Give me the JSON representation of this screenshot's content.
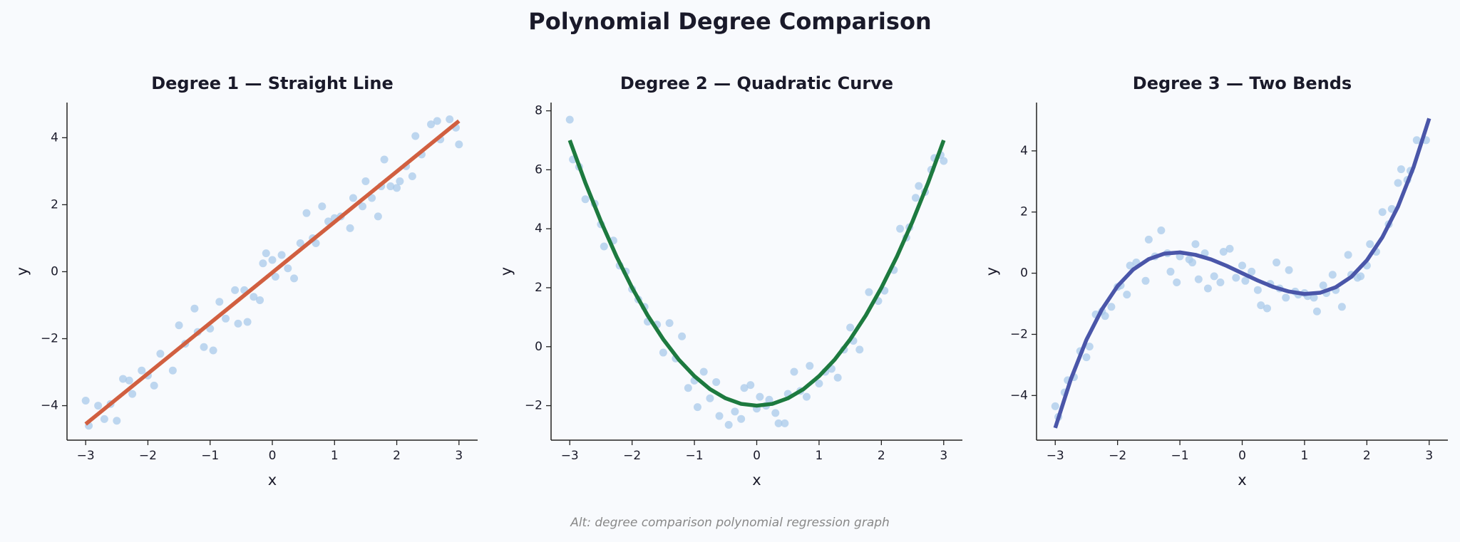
{
  "title": "Polynomial Degree Comparison",
  "footnote": "Alt: degree comparison polynomial regression graph",
  "chart_data": [
    {
      "type": "scatter",
      "title": "Degree 1 — Straight Line",
      "xlabel": "x",
      "ylabel": "y",
      "xlim": [
        -3.3,
        3.3
      ],
      "ylim": [
        -5.03,
        5.05
      ],
      "xticks": [
        {
          "value": -3,
          "label": "−3"
        },
        {
          "value": -2,
          "label": "−2"
        },
        {
          "value": -1,
          "label": "−1"
        },
        0,
        1,
        2,
        3
      ],
      "yticks": [
        {
          "value": -4,
          "label": "−4"
        },
        {
          "value": -2,
          "label": "−2"
        },
        0,
        2,
        4
      ],
      "color": "#a9c9ea",
      "x": [
        -3,
        -2.95,
        -2.8,
        -2.7,
        -2.6,
        -2.5,
        -2.4,
        -2.3,
        -2.25,
        -2.1,
        -2.0,
        -1.9,
        -1.8,
        -1.6,
        -1.5,
        -1.4,
        -1.25,
        -1.2,
        -1.1,
        -1.0,
        -0.95,
        -0.85,
        -0.75,
        -0.6,
        -0.55,
        -0.45,
        -0.4,
        -0.3,
        -0.2,
        -0.15,
        -0.1,
        0,
        0.05,
        0.15,
        0.25,
        0.35,
        0.45,
        0.55,
        0.65,
        0.7,
        0.8,
        0.9,
        1.0,
        1.1,
        1.25,
        1.3,
        1.45,
        1.5,
        1.6,
        1.7,
        1.75,
        1.8,
        1.9,
        2.0,
        2.05,
        2.15,
        2.25,
        2.3,
        2.4,
        2.55,
        2.65,
        2.7,
        2.85,
        2.95,
        3.0
      ],
      "values": [
        -3.85,
        -4.6,
        -4.0,
        -4.4,
        -3.95,
        -4.45,
        -3.2,
        -3.25,
        -3.65,
        -2.95,
        -3.1,
        -3.4,
        -2.45,
        -2.95,
        -1.6,
        -2.15,
        -1.1,
        -1.8,
        -2.25,
        -1.7,
        -2.35,
        -0.9,
        -1.4,
        -0.55,
        -1.55,
        -0.55,
        -1.5,
        -0.75,
        -0.85,
        0.25,
        0.55,
        0.35,
        -0.15,
        0.5,
        0.1,
        -0.2,
        0.85,
        1.75,
        1.0,
        0.85,
        1.95,
        1.5,
        1.6,
        1.65,
        1.3,
        2.2,
        1.95,
        2.7,
        2.2,
        1.65,
        2.55,
        3.35,
        2.55,
        2.5,
        2.7,
        3.15,
        2.85,
        4.05,
        3.5,
        4.4,
        4.5,
        3.95,
        4.55,
        4.3,
        3.8
      ],
      "fit": {
        "color": "#d15f40",
        "x": [
          -3,
          3
        ],
        "values": [
          -4.55,
          4.5
        ]
      }
    },
    {
      "type": "scatter",
      "title": "Degree 2 — Quadratic Curve",
      "xlabel": "x",
      "ylabel": "y",
      "xlim": [
        -3.3,
        3.3
      ],
      "ylim": [
        -3.17,
        8.28
      ],
      "xticks": [
        {
          "value": -3,
          "label": "−3"
        },
        {
          "value": -2,
          "label": "−2"
        },
        {
          "value": -1,
          "label": "−1"
        },
        0,
        1,
        2,
        3
      ],
      "yticks": [
        {
          "value": -2,
          "label": "−2"
        },
        0,
        2,
        4,
        6,
        8
      ],
      "color": "#a9c9ea",
      "x": [
        -3,
        -2.95,
        -2.85,
        -2.75,
        -2.6,
        -2.5,
        -2.45,
        -2.3,
        -2.2,
        -2.1,
        -2.0,
        -1.9,
        -1.8,
        -1.75,
        -1.6,
        -1.5,
        -1.4,
        -1.3,
        -1.2,
        -1.1,
        -1.0,
        -0.95,
        -0.85,
        -0.75,
        -0.65,
        -0.6,
        -0.45,
        -0.35,
        -0.25,
        -0.2,
        -0.1,
        0,
        0.05,
        0.15,
        0.2,
        0.3,
        0.35,
        0.45,
        0.5,
        0.6,
        0.7,
        0.8,
        0.85,
        1.0,
        1.1,
        1.2,
        1.3,
        1.4,
        1.5,
        1.55,
        1.65,
        1.8,
        1.95,
        2.05,
        2.2,
        2.3,
        2.4,
        2.45,
        2.55,
        2.6,
        2.7,
        2.8,
        2.85,
        2.95,
        3.0
      ],
      "values": [
        7.7,
        6.35,
        6.1,
        5.0,
        4.85,
        4.15,
        3.4,
        3.6,
        2.75,
        2.55,
        1.95,
        1.6,
        1.35,
        0.85,
        0.75,
        -0.2,
        0.8,
        -0.4,
        0.35,
        -1.4,
        -1.15,
        -2.05,
        -0.85,
        -1.75,
        -1.2,
        -2.35,
        -2.65,
        -2.2,
        -2.45,
        -1.4,
        -1.3,
        -2.1,
        -1.7,
        -2.0,
        -1.8,
        -2.25,
        -2.6,
        -2.6,
        -1.6,
        -0.85,
        -1.5,
        -1.7,
        -0.65,
        -1.25,
        -0.85,
        -0.75,
        -1.05,
        -0.1,
        0.65,
        0.2,
        -0.1,
        1.85,
        1.55,
        1.9,
        2.6,
        4.0,
        3.7,
        4.05,
        5.05,
        5.45,
        5.25,
        6.0,
        6.4,
        6.5,
        6.3
      ],
      "fit": {
        "color": "#1d7a3f",
        "x": [
          -3,
          -2.75,
          -2.5,
          -2.25,
          -2,
          -1.75,
          -1.5,
          -1.25,
          -1,
          -0.75,
          -0.5,
          -0.25,
          0,
          0.25,
          0.5,
          0.75,
          1,
          1.25,
          1.5,
          1.75,
          2,
          2.25,
          2.5,
          2.75,
          3
        ],
        "values": [
          7,
          5.56,
          4.25,
          3.06,
          2,
          1.06,
          0.25,
          -0.44,
          -1,
          -1.44,
          -1.75,
          -1.94,
          -2,
          -1.94,
          -1.75,
          -1.44,
          -1,
          -0.44,
          0.25,
          1.06,
          2,
          3.06,
          4.25,
          5.56,
          7
        ]
      }
    },
    {
      "type": "scatter",
      "title": "Degree 3 — Two Bends",
      "xlabel": "x",
      "ylabel": "y",
      "xlim": [
        -3.3,
        3.3
      ],
      "ylim": [
        -5.46,
        5.58
      ],
      "xticks": [
        {
          "value": -3,
          "label": "−3"
        },
        {
          "value": -2,
          "label": "−2"
        },
        {
          "value": -1,
          "label": "−1"
        },
        0,
        1,
        2,
        3
      ],
      "yticks": [
        {
          "value": -4,
          "label": "−4"
        },
        {
          "value": -2,
          "label": "−2"
        },
        0,
        2,
        4
      ],
      "color": "#a9c9ea",
      "x": [
        -3,
        -2.95,
        -2.85,
        -2.8,
        -2.7,
        -2.6,
        -2.5,
        -2.45,
        -2.35,
        -2.25,
        -2.2,
        -2.1,
        -2.0,
        -1.95,
        -1.85,
        -1.8,
        -1.7,
        -1.55,
        -1.5,
        -1.4,
        -1.3,
        -1.2,
        -1.15,
        -1.05,
        -1.0,
        -0.85,
        -0.8,
        -0.75,
        -0.7,
        -0.6,
        -0.55,
        -0.45,
        -0.35,
        -0.3,
        -0.2,
        -0.1,
        0,
        0.05,
        0.15,
        0.25,
        0.3,
        0.4,
        0.45,
        0.55,
        0.6,
        0.7,
        0.75,
        0.85,
        0.9,
        1.0,
        1.05,
        1.15,
        1.2,
        1.3,
        1.35,
        1.45,
        1.5,
        1.6,
        1.7,
        1.75,
        1.85,
        1.9,
        2.0,
        2.05,
        2.15,
        2.25,
        2.35,
        2.4,
        2.5,
        2.55,
        2.65,
        2.7,
        2.8,
        2.95
      ],
      "values": [
        -4.35,
        -4.7,
        -3.9,
        -3.5,
        -3.4,
        -2.55,
        -2.75,
        -2.4,
        -1.35,
        -1.25,
        -1.4,
        -1.1,
        -0.45,
        -0.4,
        -0.7,
        0.25,
        0.35,
        -0.25,
        1.1,
        0.55,
        1.4,
        0.65,
        0.05,
        -0.3,
        0.55,
        0.45,
        0.35,
        0.95,
        -0.2,
        0.65,
        -0.5,
        -0.1,
        -0.3,
        0.7,
        0.8,
        -0.15,
        0.25,
        -0.25,
        0.05,
        -0.55,
        -1.05,
        -1.15,
        -0.35,
        0.35,
        -0.5,
        -0.8,
        0.1,
        -0.6,
        -0.7,
        -0.65,
        -0.75,
        -0.8,
        -1.25,
        -0.4,
        -0.65,
        -0.05,
        -0.55,
        -1.1,
        0.6,
        -0.05,
        -0.15,
        -0.1,
        0.25,
        0.95,
        0.7,
        2.0,
        1.6,
        2.1,
        2.95,
        3.4,
        3.05,
        3.35,
        4.35,
        4.35
      ],
      "fit": {
        "color": "#4a56a9",
        "x": [
          -3,
          -2.75,
          -2.5,
          -2.25,
          -2,
          -1.75,
          -1.5,
          -1.25,
          -1,
          -0.75,
          -0.5,
          -0.25,
          0,
          0.25,
          0.5,
          0.75,
          1,
          1.25,
          1.5,
          1.75,
          2,
          2.25,
          2.5,
          2.75,
          3
        ],
        "values": [
          -5.06,
          -3.47,
          -2.18,
          -1.18,
          -0.42,
          0.12,
          0.46,
          0.64,
          0.68,
          0.6,
          0.45,
          0.24,
          0,
          -0.24,
          -0.45,
          -0.6,
          -0.68,
          -0.64,
          -0.46,
          -0.12,
          0.42,
          1.18,
          2.18,
          3.47,
          5.06
        ]
      }
    }
  ]
}
